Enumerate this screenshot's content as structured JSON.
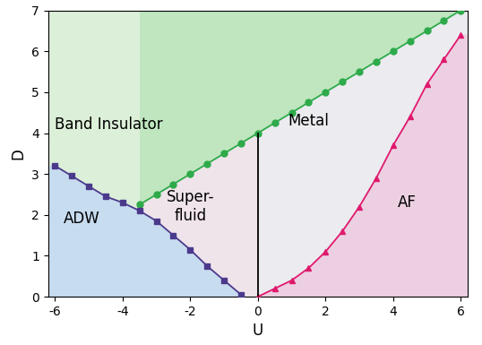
{
  "chart_data": {
    "type": "line",
    "x_label": "U",
    "y_label": "D",
    "xlim": [
      -6.2,
      6.2
    ],
    "ylim": [
      0,
      7
    ],
    "xticks": [
      -6,
      -4,
      -2,
      0,
      2,
      4,
      6
    ],
    "yticks": [
      0,
      1,
      2,
      3,
      4,
      5,
      6,
      7
    ],
    "annotations": [
      "Band Insulator",
      "Super-\nfluid",
      "Metal",
      "ADW",
      "AF"
    ],
    "series": [
      {
        "color": "#2eaa4a",
        "marker": "circle",
        "line_style": "solid",
        "x": [
          -3.5,
          -3,
          -2.5,
          -2,
          -1.5,
          -1,
          -0.5,
          0,
          0.5,
          1,
          1.5,
          2,
          2.5,
          3,
          3.5,
          4,
          4.5,
          5,
          5.5,
          6
        ],
        "values": [
          2.25,
          2.5,
          2.75,
          3,
          3.25,
          3.5,
          3.75,
          4,
          4.25,
          4.5,
          4.75,
          5,
          5.25,
          5.5,
          5.75,
          6,
          6.25,
          6.5,
          6.75,
          7
        ]
      },
      {
        "color": "#4b3a8c",
        "marker": "square",
        "line_style": "solid",
        "x": [
          -6,
          -5.5,
          -5,
          -4.5,
          -4,
          -3.5,
          -3,
          -2.5,
          -2,
          -1.5,
          -1,
          -0.5
        ],
        "values": [
          3.2,
          2.95,
          2.7,
          2.45,
          2.3,
          2.1,
          1.85,
          1.5,
          1.15,
          0.75,
          0.4,
          0.05
        ]
      },
      {
        "color": "#e0196e",
        "marker": "triangle",
        "line_style": "solid",
        "x": [
          0,
          0.5,
          1,
          1.5,
          2,
          2.5,
          3,
          3.5,
          4,
          4.5,
          5,
          5.5,
          6
        ],
        "values": [
          0,
          0.2,
          0.4,
          0.7,
          1.1,
          1.6,
          2.2,
          2.9,
          3.7,
          4.4,
          5.2,
          5.8,
          6.4
        ]
      },
      {
        "color": "#000000",
        "marker": "none",
        "line_style": "solid",
        "x": [
          0,
          0
        ],
        "values": [
          0,
          4
        ]
      }
    ]
  }
}
